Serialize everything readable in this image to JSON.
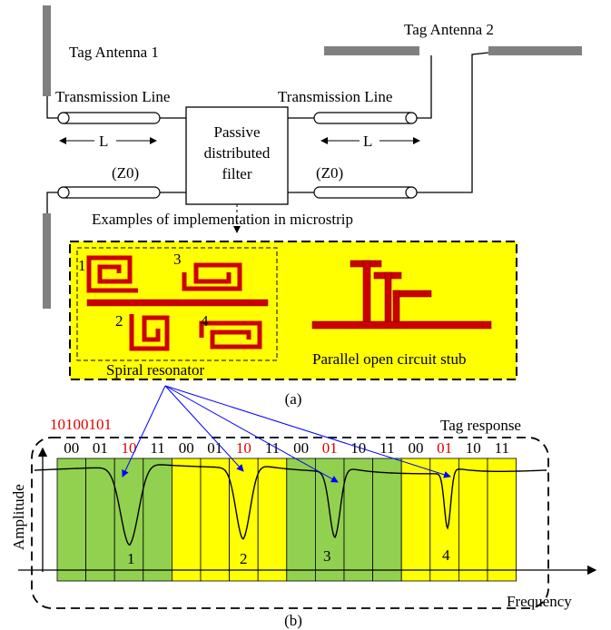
{
  "top": {
    "antenna1": "Tag Antenna 1",
    "antenna2": "Tag Antenna 2",
    "tline_left": "Transmission Line",
    "tline_right": "Transmission Line",
    "len_left": "L",
    "len_right": "L",
    "z0_left": "(Z0)",
    "z0_right": "(Z0)",
    "filter_line1": "Passive",
    "filter_line2": "distributed",
    "filter_line3": "filter",
    "examples": "Examples of implementation in microstrip",
    "res1": "1",
    "res2": "2",
    "res3": "3",
    "res4": "4",
    "spiral_label": "Spiral resonator",
    "stub_label": "Parallel open circuit stub",
    "caption_a": "(a)"
  },
  "bottom": {
    "code": "10100101",
    "tag_response": "Tag response",
    "ylabel": "Amplitude",
    "xlabel": "Frequency",
    "caption_b": "(b)",
    "bits": [
      "00",
      "01",
      "10",
      "11",
      "00",
      "01",
      "10",
      "11",
      "00",
      "01",
      "10",
      "11",
      "00",
      "01",
      "10",
      "11"
    ],
    "highlight_bits": [
      2,
      6,
      9,
      13
    ],
    "notch_labels": [
      "1",
      "2",
      "3",
      "4"
    ],
    "colors": {
      "green": "#92d050",
      "yellow": "#ffff00",
      "red": "#e00000",
      "blue": "#0000ff",
      "antenna": "#808080",
      "resonator": "#cc0000"
    }
  }
}
